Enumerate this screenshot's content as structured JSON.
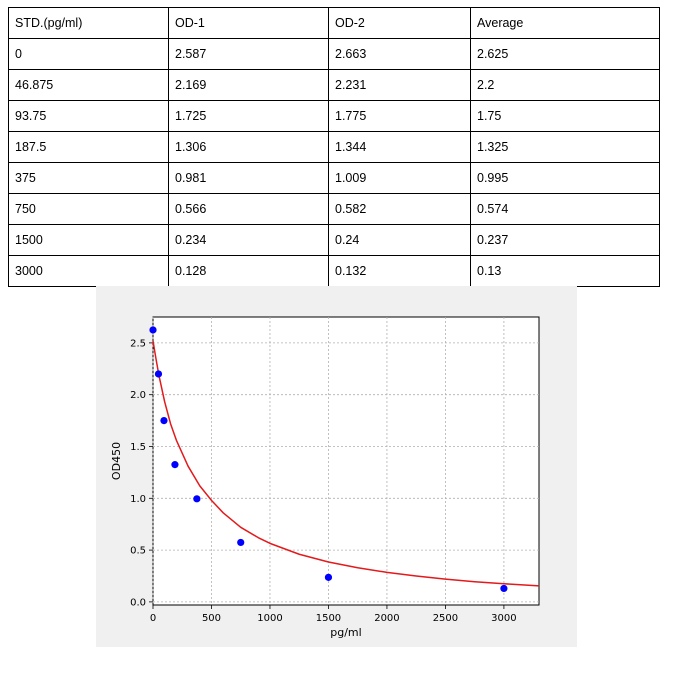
{
  "table": {
    "headers": [
      "STD.(pg/ml)",
      "OD-1",
      "OD-2",
      "Average"
    ],
    "rows": [
      [
        "0",
        "2.587",
        "2.663",
        "2.625"
      ],
      [
        "46.875",
        "2.169",
        "2.231",
        "2.2"
      ],
      [
        "93.75",
        "1.725",
        "1.775",
        "1.75"
      ],
      [
        "187.5",
        "1.306",
        "1.344",
        "1.325"
      ],
      [
        "375",
        "0.981",
        "1.009",
        "0.995"
      ],
      [
        "750",
        "0.566",
        "0.582",
        "0.574"
      ],
      [
        "1500",
        "0.234",
        "0.24",
        "0.237"
      ],
      [
        "3000",
        "0.128",
        "0.132",
        "0.13"
      ]
    ]
  },
  "chart_data": {
    "type": "scatter",
    "xlabel": "pg/ml",
    "ylabel": "OD450",
    "xlim": [
      0,
      3300
    ],
    "ylim": [
      -0.03,
      2.75
    ],
    "x_ticks": [
      0,
      500,
      1000,
      1500,
      2000,
      2500,
      3000
    ],
    "y_ticks": [
      0.0,
      0.5,
      1.0,
      1.5,
      2.0,
      2.5
    ],
    "x_tick_labels": [
      "0",
      "500",
      "1000",
      "1500",
      "2000",
      "2500",
      "3000"
    ],
    "y_tick_labels": [
      "0.0",
      "0.5",
      "1.0",
      "1.5",
      "2.0",
      "2.5"
    ],
    "grid": true,
    "points": {
      "x": [
        0,
        46.875,
        93.75,
        187.5,
        375,
        750,
        1500,
        3000
      ],
      "y": [
        2.625,
        2.2,
        1.75,
        1.325,
        0.995,
        0.574,
        0.237,
        0.13
      ],
      "color": "#0000ff"
    },
    "fit_curve": {
      "color": "#e31a1c",
      "x": [
        0,
        25,
        50,
        100,
        150,
        200,
        300,
        400,
        500,
        600,
        750,
        900,
        1000,
        1250,
        1500,
        1750,
        2000,
        2250,
        2500,
        2750,
        3000,
        3300
      ],
      "y": [
        2.52,
        2.35,
        2.19,
        1.93,
        1.72,
        1.56,
        1.31,
        1.12,
        0.98,
        0.86,
        0.72,
        0.62,
        0.565,
        0.46,
        0.385,
        0.33,
        0.285,
        0.25,
        0.22,
        0.195,
        0.175,
        0.155
      ]
    }
  }
}
